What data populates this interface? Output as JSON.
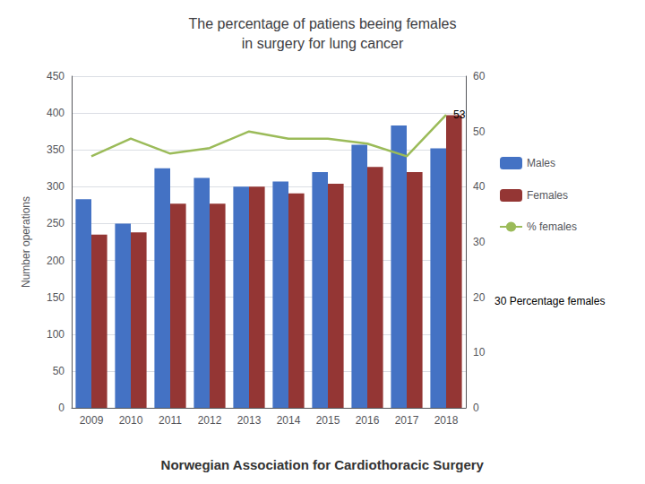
{
  "chart_data": {
    "type": "bar",
    "title": "The percentage of patiens beeing females\nin surgery for lung cancer",
    "categories": [
      "2009",
      "2010",
      "2011",
      "2012",
      "2013",
      "2014",
      "2015",
      "2016",
      "2017",
      "2018"
    ],
    "series": [
      {
        "name": "Males",
        "color": "#4472C4",
        "values": [
          283,
          250,
          325,
          312,
          300,
          307,
          320,
          357,
          383,
          352
        ]
      },
      {
        "name": "Females",
        "color": "#943634",
        "values": [
          235,
          238,
          277,
          277,
          300,
          291,
          304,
          327,
          320,
          397
        ]
      },
      {
        "name": "% females",
        "type": "line",
        "axis": "y2",
        "color": "#9BBB59",
        "values": [
          45.5,
          48.7,
          46.0,
          47.0,
          50.0,
          48.7,
          48.7,
          47.8,
          45.5,
          53.0
        ]
      }
    ],
    "ylabel": "Number operations",
    "ylim": [
      0,
      450
    ],
    "yticks": [
      0,
      50,
      100,
      150,
      200,
      250,
      300,
      350,
      400,
      450
    ],
    "y2lim": [
      0,
      60
    ],
    "y2ticks": [
      0,
      10,
      20,
      30,
      40,
      50,
      60
    ],
    "grid": true,
    "legend": "right",
    "annotations": [
      {
        "text": "53",
        "x": "2018",
        "y": 53,
        "axis": "y2"
      },
      {
        "text": "30 Percentage females"
      }
    ],
    "footer": "Norwegian Association for Cardiothoracic Surgery"
  }
}
